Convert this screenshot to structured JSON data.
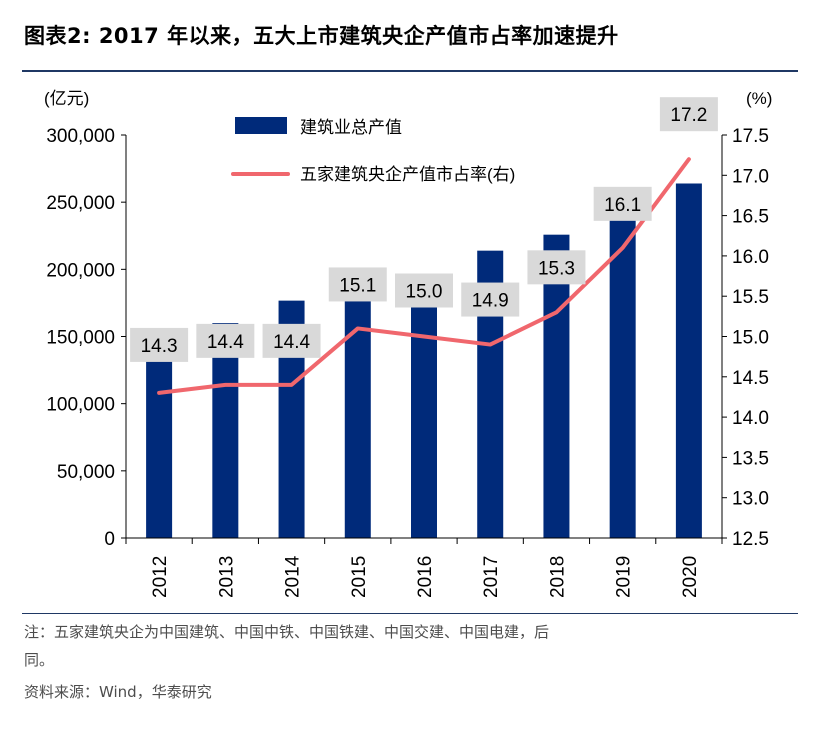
{
  "header": {
    "title": "图表2:   2017 年以来，五大上市建筑央企产值市占率加速提升"
  },
  "chart_data": {
    "type": "bar",
    "categories": [
      "2012",
      "2013",
      "2014",
      "2015",
      "2016",
      "2017",
      "2018",
      "2019",
      "2020"
    ],
    "series": [
      {
        "name": "建筑业总产值",
        "type": "bar",
        "axis": "left",
        "color": "#002A7A",
        "values": [
          137000,
          160000,
          176700,
          180700,
          193600,
          213900,
          225800,
          248400,
          263900
        ]
      },
      {
        "name": "五家建筑央企产值市占率(右)",
        "type": "line",
        "axis": "right",
        "color": "#F0676D",
        "values": [
          14.3,
          14.4,
          14.4,
          15.1,
          15.0,
          14.9,
          15.3,
          16.1,
          17.2
        ]
      }
    ],
    "left_axis": {
      "unit_label": "(亿元)",
      "ylim": [
        0,
        300000
      ],
      "ticks": [
        "0",
        "50,000",
        "100,000",
        "150,000",
        "200,000",
        "250,000",
        "300,000"
      ]
    },
    "right_axis": {
      "unit_label": "(%)",
      "ylim": [
        12.5,
        17.5
      ],
      "ticks": [
        "12.5",
        "13.0",
        "13.5",
        "14.0",
        "14.5",
        "15.0",
        "15.5",
        "16.0",
        "16.5",
        "17.0",
        "17.5"
      ]
    },
    "data_labels": [
      "14.3",
      "14.4",
      "14.4",
      "15.1",
      "15.0",
      "14.9",
      "15.3",
      "16.1",
      "17.2"
    ],
    "legend_position": "top-center",
    "grid": false
  },
  "footer": {
    "note_line1": "注：五家建筑央企为中国建筑、中国中铁、中国铁建、中国交建、中国电建，后",
    "note_line2": "同。",
    "source": "资料来源：Wind，华泰研究"
  }
}
